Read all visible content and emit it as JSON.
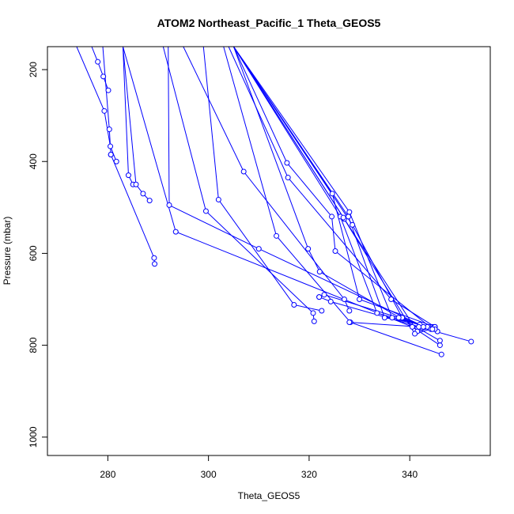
{
  "chart_data": {
    "type": "line",
    "title": "ATOM2 Northeast_Pacific_1 Theta_GEOS5",
    "xlabel": "Theta_GEOS5",
    "ylabel": "Pressure (mbar)",
    "xlim": [
      268,
      356
    ],
    "ylim": [
      1040,
      150
    ],
    "y_reversed": true,
    "x_ticks": [
      280,
      300,
      320,
      340
    ],
    "y_ticks": [
      200,
      400,
      600,
      800,
      1000
    ],
    "grid": false,
    "legend": "none",
    "line_color": "#0000ff",
    "marker": "open-circle",
    "series": [
      {
        "x": [
          273.8,
          279.3,
          280.5,
          281.7
        ],
        "y": [
          150,
          290,
          367,
          400
        ]
      },
      {
        "x": [
          276.8,
          278.0,
          279.1,
          280.1
        ],
        "y": [
          150,
          183,
          215,
          245
        ]
      },
      {
        "x": [
          279.0,
          280.3,
          280.6
        ],
        "y": [
          150,
          330,
          385
        ]
      },
      {
        "x": [
          280.6,
          289.2,
          289.3
        ],
        "y": [
          385,
          610,
          623
        ]
      },
      {
        "x": [
          283.0,
          284.1,
          285.0
        ],
        "y": [
          150,
          430,
          450
        ]
      },
      {
        "x": [
          283.0,
          285.6,
          287.0,
          288.3
        ],
        "y": [
          150,
          450,
          470,
          485
        ]
      },
      {
        "x": [
          292.0,
          292.2,
          310.0,
          342.0
        ],
        "y": [
          150,
          495,
          590,
          755
        ]
      },
      {
        "x": [
          283.0,
          293.5,
          340.5,
          346.0
        ],
        "y": [
          150,
          553,
          760,
          800
        ]
      },
      {
        "x": [
          291.0,
          299.5,
          320.8,
          321.0
        ],
        "y": [
          150,
          508,
          730,
          748
        ]
      },
      {
        "x": [
          299.0,
          302.0,
          317.0,
          322.5
        ],
        "y": [
          150,
          483,
          712,
          725
        ]
      },
      {
        "x": [
          295.0,
          307.0,
          327.0,
          328.0
        ],
        "y": [
          150,
          422,
          700,
          725
        ]
      },
      {
        "x": [
          303.0,
          313.5,
          328.2,
          346.3
        ],
        "y": [
          150,
          562,
          750,
          820
        ]
      },
      {
        "x": [
          305.0,
          315.6,
          324.5,
          325.2,
          344.0
        ],
        "y": [
          150,
          403,
          520,
          595,
          760
        ]
      },
      {
        "x": [
          304.0,
          315.8,
          336.3,
          345.0
        ],
        "y": [
          150,
          435,
          700,
          760
        ]
      },
      {
        "x": [
          305.0,
          319.8,
          322.1,
          346.0
        ],
        "y": [
          150,
          590,
          640,
          790
        ]
      },
      {
        "x": [
          305.0,
          324.6,
          330.0,
          345.0
        ],
        "y": [
          150,
          470,
          700,
          760
        ]
      },
      {
        "x": [
          305.0,
          326.2,
          333.5,
          343.5
        ],
        "y": [
          150,
          520,
          730,
          760
        ]
      },
      {
        "x": [
          305.0,
          328.0,
          336.5,
          344.5
        ],
        "y": [
          150,
          510,
          740,
          760
        ]
      },
      {
        "x": [
          305.0,
          328.6,
          338.5,
          345.5
        ],
        "y": [
          150,
          538,
          740,
          770
        ]
      },
      {
        "x": [
          305.0,
          327.0,
          341.5,
          344.8
        ],
        "y": [
          150,
          525,
          770,
          760
        ]
      },
      {
        "x": [
          305.0,
          327.8,
          335.0,
          345.0
        ],
        "y": [
          150,
          520,
          740,
          760
        ]
      },
      {
        "x": [
          305.0,
          326.8,
          341.0,
          344.2
        ],
        "y": [
          150,
          522,
          775,
          765
        ]
      },
      {
        "x": [
          322.0,
          324.3,
          352.2
        ],
        "y": [
          695,
          705,
          792
        ]
      },
      {
        "x": [
          322.0,
          323.0,
          337.8,
          345.0
        ],
        "y": [
          695,
          690,
          740,
          765
        ]
      },
      {
        "x": [
          328.0,
          341.8,
          342.7,
          344.5
        ],
        "y": [
          750,
          760,
          760,
          765
        ]
      }
    ]
  }
}
